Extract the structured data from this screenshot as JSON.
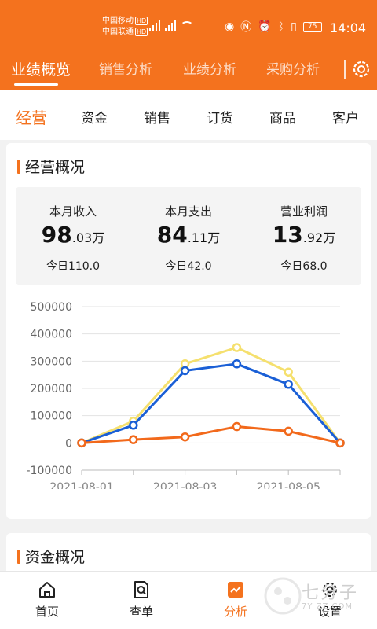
{
  "status": {
    "carrier1": "中国移动",
    "carrier2": "中国联通",
    "hd": "HD",
    "battery": "75",
    "time": "14:04"
  },
  "top_tabs": [
    "业绩概览",
    "销售分析",
    "业绩分析",
    "采购分析"
  ],
  "sub_tabs": [
    "经营",
    "资金",
    "销售",
    "订货",
    "商品",
    "客户"
  ],
  "overview": {
    "title": "经营概况",
    "metrics": [
      {
        "label": "本月收入",
        "int": "98",
        "dec": ".03",
        "unit": "万",
        "today": "今日110.0"
      },
      {
        "label": "本月支出",
        "int": "84",
        "dec": ".11",
        "unit": "万",
        "today": "今日42.0"
      },
      {
        "label": "营业利润",
        "int": "13",
        "dec": ".92",
        "unit": "万",
        "today": "今日68.0"
      }
    ]
  },
  "chart_data": {
    "type": "line",
    "x": [
      "2021-08-01",
      "2021-08-02",
      "2021-08-03",
      "2021-08-04",
      "2021-08-05",
      "2021-08-06"
    ],
    "x_tick_labels": [
      "2021-08-01",
      "2021-08-03",
      "2021-08-05"
    ],
    "y_ticks": [
      500000,
      400000,
      300000,
      200000,
      100000,
      0,
      -100000
    ],
    "ylim": [
      -100000,
      500000
    ],
    "grid": true,
    "series": [
      {
        "color": "#f5e06e",
        "values": [
          0,
          80000,
          290000,
          350000,
          260000,
          0
        ]
      },
      {
        "color": "#1a5fd6",
        "values": [
          0,
          65000,
          265000,
          290000,
          215000,
          0
        ]
      },
      {
        "color": "#f2691b",
        "values": [
          0,
          12000,
          22000,
          60000,
          43000,
          0
        ]
      }
    ]
  },
  "funds": {
    "title": "资金概况"
  },
  "bottom_nav": [
    "首页",
    "查单",
    "分析",
    "设置"
  ],
  "watermark": {
    "text": "七分子",
    "sub": "7Y ZZ.COM"
  },
  "colors": {
    "accent": "#f4721e"
  }
}
